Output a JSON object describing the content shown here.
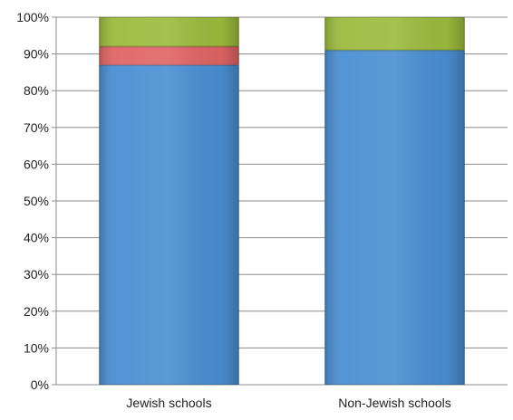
{
  "chart_data": {
    "type": "bar",
    "stacked": true,
    "categories": [
      "Jewish schools",
      "Non-Jewish schools"
    ],
    "series": [
      {
        "color": "#4a8ed2",
        "values": [
          87,
          91
        ]
      },
      {
        "color": "#e06464",
        "values": [
          5,
          0
        ]
      },
      {
        "color": "#9bbb3c",
        "values": [
          8,
          9
        ]
      }
    ],
    "ylim": [
      0,
      100
    ],
    "y_ticks": [
      0,
      10,
      20,
      30,
      40,
      50,
      60,
      70,
      80,
      90,
      100
    ],
    "y_tick_labels": [
      "0%",
      "10%",
      "20%",
      "30%",
      "40%",
      "50%",
      "60%",
      "70%",
      "80%",
      "90%",
      "100%"
    ],
    "grid": true,
    "legend": "none",
    "title": "",
    "xlabel": "",
    "ylabel": ""
  }
}
